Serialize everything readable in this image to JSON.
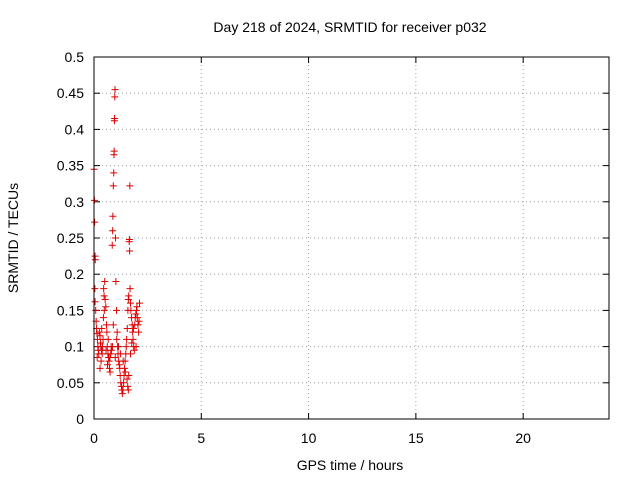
{
  "chart_data": {
    "type": "scatter",
    "title": "Day 218 of 2024, SRMTID for receiver p032",
    "xlabel": "GPS time / hours",
    "ylabel": "SRMTID / TECUs",
    "xlim": [
      0,
      24
    ],
    "ylim": [
      0,
      0.5
    ],
    "xticks": [
      0,
      5,
      10,
      15,
      20
    ],
    "yticks": [
      0,
      0.05,
      0.1,
      0.15,
      0.2,
      0.25,
      0.3,
      0.35,
      0.4,
      0.45,
      0.5
    ],
    "xtick_labels": [
      "0",
      "5",
      "10",
      "15",
      "20"
    ],
    "ytick_labels": [
      "0",
      "0.05",
      "0.1",
      "0.15",
      "0.2",
      "0.25",
      "0.3",
      "0.35",
      "0.4",
      "0.45",
      "0.5"
    ],
    "grid": true,
    "legend": "none",
    "marker": "plus",
    "color": "#e00000",
    "series": [
      {
        "name": "SRMTID",
        "points": [
          [
            0.0,
            0.345
          ],
          [
            0.02,
            0.302
          ],
          [
            0.03,
            0.272
          ],
          [
            0.05,
            0.225
          ],
          [
            0.06,
            0.22
          ],
          [
            0.04,
            0.18
          ],
          [
            0.05,
            0.162
          ],
          [
            0.08,
            0.15
          ],
          [
            0.1,
            0.135
          ],
          [
            0.12,
            0.125
          ],
          [
            0.14,
            0.118
          ],
          [
            0.16,
            0.11
          ],
          [
            0.18,
            0.1
          ],
          [
            0.2,
            0.095
          ],
          [
            0.15,
            0.085
          ],
          [
            0.22,
            0.09
          ],
          [
            0.25,
            0.12
          ],
          [
            0.28,
            0.115
          ],
          [
            0.3,
            0.105
          ],
          [
            0.32,
            0.1
          ],
          [
            0.35,
            0.095
          ],
          [
            0.38,
            0.09
          ],
          [
            0.4,
            0.1
          ],
          [
            0.42,
            0.11
          ],
          [
            0.45,
            0.18
          ],
          [
            0.47,
            0.17
          ],
          [
            0.5,
            0.19
          ],
          [
            0.52,
            0.165
          ],
          [
            0.55,
            0.155
          ],
          [
            0.58,
            0.13
          ],
          [
            0.6,
            0.12
          ],
          [
            0.62,
            0.1
          ],
          [
            0.65,
            0.09
          ],
          [
            0.68,
            0.085
          ],
          [
            0.7,
            0.08
          ],
          [
            0.72,
            0.07
          ],
          [
            0.75,
            0.065
          ],
          [
            0.78,
            0.09
          ],
          [
            0.8,
            0.1
          ],
          [
            0.82,
            0.095
          ],
          [
            0.85,
            0.24
          ],
          [
            0.87,
            0.26
          ],
          [
            0.88,
            0.28
          ],
          [
            0.9,
            0.322
          ],
          [
            0.92,
            0.34
          ],
          [
            0.93,
            0.365
          ],
          [
            0.94,
            0.37
          ],
          [
            0.95,
            0.412
          ],
          [
            0.96,
            0.415
          ],
          [
            0.97,
            0.445
          ],
          [
            0.98,
            0.455
          ],
          [
            1.0,
            0.25
          ],
          [
            1.02,
            0.19
          ],
          [
            1.05,
            0.15
          ],
          [
            1.08,
            0.12
          ],
          [
            1.1,
            0.1
          ],
          [
            1.12,
            0.09
          ],
          [
            1.15,
            0.08
          ],
          [
            1.18,
            0.075
          ],
          [
            1.2,
            0.07
          ],
          [
            1.22,
            0.06
          ],
          [
            1.25,
            0.05
          ],
          [
            1.28,
            0.045
          ],
          [
            1.3,
            0.04
          ],
          [
            1.32,
            0.035
          ],
          [
            1.35,
            0.04
          ],
          [
            1.38,
            0.05
          ],
          [
            1.4,
            0.06
          ],
          [
            1.42,
            0.07
          ],
          [
            1.45,
            0.08
          ],
          [
            1.48,
            0.09
          ],
          [
            1.5,
            0.1
          ],
          [
            1.52,
            0.11
          ],
          [
            1.55,
            0.125
          ],
          [
            1.58,
            0.15
          ],
          [
            1.6,
            0.165
          ],
          [
            1.62,
            0.17
          ],
          [
            1.64,
            0.245
          ],
          [
            1.65,
            0.248
          ],
          [
            1.66,
            0.232
          ],
          [
            1.67,
            0.322
          ],
          [
            1.68,
            0.18
          ],
          [
            1.7,
            0.16
          ],
          [
            1.72,
            0.15
          ],
          [
            1.75,
            0.14
          ],
          [
            1.78,
            0.13
          ],
          [
            1.8,
            0.12
          ],
          [
            1.82,
            0.11
          ],
          [
            1.85,
            0.1
          ],
          [
            1.88,
            0.095
          ],
          [
            1.9,
            0.13
          ],
          [
            1.92,
            0.14
          ],
          [
            1.95,
            0.145
          ],
          [
            1.98,
            0.15
          ],
          [
            2.0,
            0.155
          ],
          [
            2.02,
            0.14
          ],
          [
            2.05,
            0.13
          ],
          [
            2.08,
            0.12
          ],
          [
            2.1,
            0.135
          ],
          [
            2.12,
            0.16
          ],
          [
            0.28,
            0.07
          ],
          [
            0.33,
            0.08
          ],
          [
            0.36,
            0.125
          ],
          [
            0.44,
            0.14
          ],
          [
            0.48,
            0.15
          ],
          [
            0.56,
            0.095
          ],
          [
            0.63,
            0.075
          ],
          [
            0.66,
            0.11
          ],
          [
            0.74,
            0.085
          ],
          [
            0.86,
            0.1
          ],
          [
            0.9,
            0.13
          ],
          [
            0.99,
            0.085
          ],
          [
            1.06,
            0.11
          ],
          [
            1.14,
            0.1
          ],
          [
            1.24,
            0.09
          ],
          [
            1.36,
            0.08
          ],
          [
            1.46,
            0.065
          ],
          [
            1.54,
            0.055
          ],
          [
            1.57,
            0.045
          ],
          [
            1.6,
            0.04
          ],
          [
            1.62,
            0.06
          ],
          [
            1.7,
            0.09
          ],
          [
            1.76,
            0.105
          ],
          [
            1.84,
            0.125
          ],
          [
            1.96,
            0.1
          ]
        ]
      }
    ]
  }
}
